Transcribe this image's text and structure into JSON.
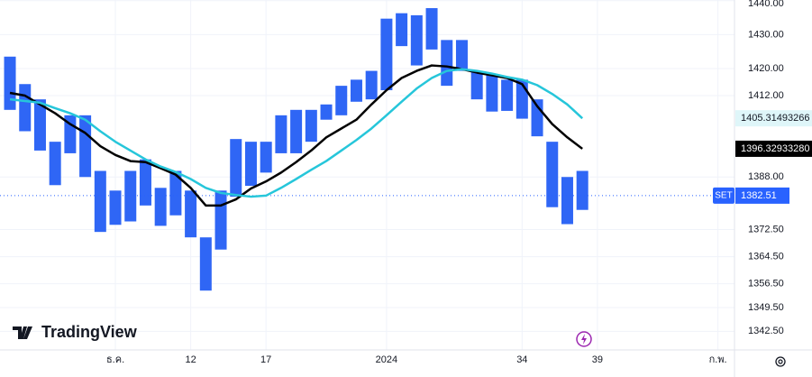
{
  "chart_data": {
    "type": "range-bar",
    "x": [
      0,
      1,
      2,
      3,
      4,
      5,
      6,
      7,
      8,
      9,
      10,
      11,
      12,
      13,
      14,
      15,
      16,
      17,
      18,
      19,
      20,
      21,
      22,
      23,
      24,
      25,
      26,
      27,
      28,
      29,
      30,
      31,
      32,
      33,
      34,
      35,
      36,
      37,
      38
    ],
    "bars": {
      "color": "#2f66f5",
      "high": [
        1423.5,
        1415.4,
        1410.9,
        1398.4,
        1406.2,
        1406.2,
        1389.8,
        1384.0,
        1389.8,
        1393.2,
        1384.8,
        1389.8,
        1384.0,
        1370.2,
        1384.0,
        1399.2,
        1398.4,
        1398.4,
        1406.2,
        1407.8,
        1407.8,
        1409.4,
        1414.9,
        1416.7,
        1419.3,
        1434.7,
        1436.3,
        1435.7,
        1437.8,
        1428.4,
        1428.4,
        1419.3,
        1418.0,
        1416.7,
        1416.7,
        1410.9,
        1398.4,
        1388.0,
        1389.8
      ],
      "low": [
        1407.8,
        1401.5,
        1395.8,
        1385.6,
        1395.0,
        1388.0,
        1371.8,
        1373.9,
        1374.9,
        1379.6,
        1373.6,
        1376.7,
        1370.2,
        1354.5,
        1366.6,
        1382.2,
        1385.4,
        1389.3,
        1395.0,
        1395.0,
        1398.4,
        1404.9,
        1406.2,
        1410.2,
        1410.9,
        1413.6,
        1426.6,
        1420.9,
        1425.6,
        1414.9,
        1419.3,
        1410.9,
        1407.3,
        1407.5,
        1405.2,
        1400.0,
        1379.1,
        1374.1,
        1378.3
      ]
    },
    "lines": [
      {
        "color": "#000000",
        "end_label": "1396.32933280",
        "values": [
          1412.8,
          1412.0,
          1409.4,
          1406.8,
          1403.6,
          1401.0,
          1397.1,
          1394.5,
          1392.7,
          1392.4,
          1390.6,
          1388.7,
          1384.8,
          1379.6,
          1379.6,
          1381.4,
          1384.6,
          1386.7,
          1389.3,
          1392.4,
          1395.8,
          1399.7,
          1402.3,
          1404.9,
          1409.4,
          1413.6,
          1417.2,
          1419.3,
          1420.9,
          1420.6,
          1419.8,
          1418.8,
          1418.0,
          1417.2,
          1415.4,
          1408.9,
          1403.6,
          1399.7,
          1396.3293328
        ]
      },
      {
        "color": "#26c6da",
        "end_label": "1405.31493266",
        "values": [
          1410.9,
          1410.4,
          1409.9,
          1408.3,
          1406.8,
          1404.9,
          1401.5,
          1398.4,
          1395.8,
          1393.2,
          1391.1,
          1389.5,
          1387.4,
          1384.8,
          1383.3,
          1382.7,
          1382.2,
          1382.5,
          1384.8,
          1387.4,
          1390.1,
          1392.7,
          1395.8,
          1398.9,
          1402.3,
          1406.2,
          1410.2,
          1414.1,
          1417.2,
          1419.3,
          1419.8,
          1419.3,
          1418.5,
          1417.5,
          1416.7,
          1415.1,
          1412.5,
          1409.4,
          1405.31493266
        ]
      }
    ],
    "last_price": {
      "symbol": "SET",
      "value": 1382.51,
      "color": "#2962ff"
    },
    "xlim": [
      -0.66,
      48.1
    ],
    "ylim": [
      1337.0,
      1440.2
    ],
    "xticks": [
      {
        "value": 7,
        "label": "ธ.ค."
      },
      12,
      17,
      {
        "value": 25,
        "label": "2024"
      },
      34,
      39,
      {
        "value": 47,
        "label": "ก.พ."
      }
    ],
    "yticks": [
      {
        "value": 1440,
        "label": "1440.00"
      },
      {
        "value": 1430,
        "label": "1430.00"
      },
      {
        "value": 1420,
        "label": "1420.00"
      },
      {
        "value": 1412,
        "label": "1412.00"
      },
      {
        "value": 1388,
        "label": "1388.00"
      },
      {
        "value": 1372.5,
        "label": "1372.50"
      },
      {
        "value": 1364.5,
        "label": "1364.50"
      },
      {
        "value": 1356.5,
        "label": "1356.50"
      },
      {
        "value": 1349.5,
        "label": "1349.50"
      },
      {
        "value": 1342.5,
        "label": "1342.50"
      }
    ],
    "grid": true,
    "watermark": "TradingView"
  }
}
